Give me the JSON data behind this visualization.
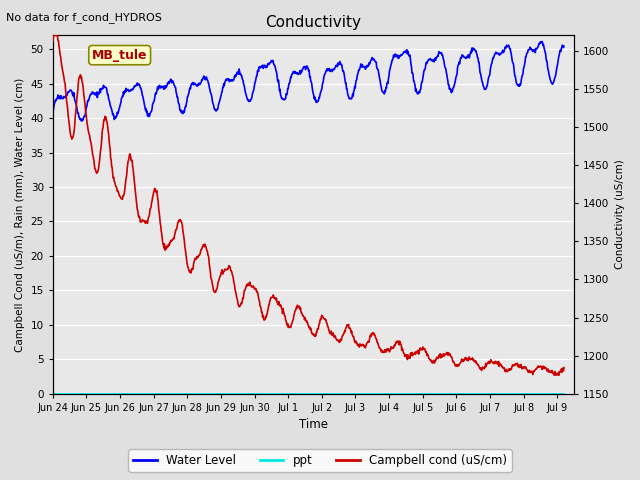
{
  "title": "Conductivity",
  "top_left_text": "No data for f_cond_HYDROS",
  "annotation_text": "MB_tule",
  "xlabel": "Time",
  "ylabel_left": "Campbell Cond (uS/m), Rain (mm), Water Level (cm)",
  "ylabel_right": "Conductivity (uS/cm)",
  "ylim_left": [
    0,
    52
  ],
  "ylim_right": [
    1150,
    1620
  ],
  "yticks_left": [
    0,
    5,
    10,
    15,
    20,
    25,
    30,
    35,
    40,
    45,
    50
  ],
  "yticks_right": [
    1150,
    1200,
    1250,
    1300,
    1350,
    1400,
    1450,
    1500,
    1550,
    1600
  ],
  "xtick_labels": [
    "Jun 24",
    "Jun 25",
    "Jun 26",
    "Jun 27",
    "Jun 28",
    "Jun 29",
    "Jun 30",
    "Jul 1",
    "Jul 2",
    "Jul 3",
    "Jul 4",
    "Jul 5",
    "Jul 6",
    "Jul 7",
    "Jul 8",
    "Jul 9"
  ],
  "xtick_positions": [
    0,
    1,
    2,
    3,
    4,
    5,
    6,
    7,
    8,
    9,
    10,
    11,
    12,
    13,
    14,
    15
  ],
  "xlim": [
    0,
    15.5
  ],
  "fig_bg_color": "#e0e0e0",
  "plot_bg_color": "#e8e8e8",
  "grid_color": "#ffffff",
  "water_level_color": "#0000ff",
  "ppt_color": "#00e5e5",
  "campbell_color": "#cc0000",
  "legend_entries": [
    "Water Level",
    "ppt",
    "Campbell cond (uS/cm)"
  ],
  "legend_colors": [
    "#0000ff",
    "#00e5e5",
    "#cc0000"
  ]
}
